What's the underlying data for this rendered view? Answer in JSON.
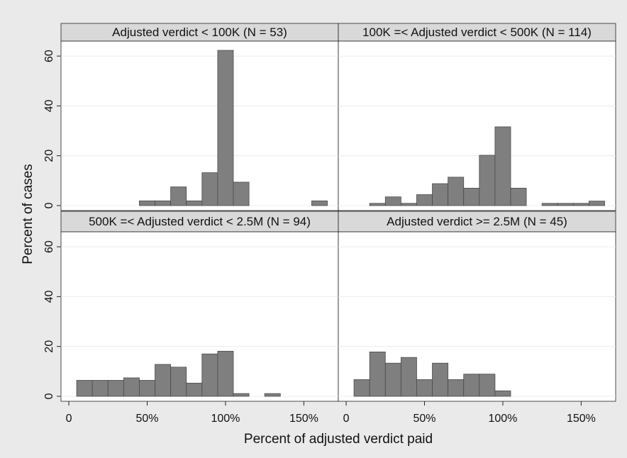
{
  "xlabel": "Percent of adjusted verdict paid",
  "ylabel": "Percent of cases",
  "chart_data": [
    {
      "type": "histogram",
      "title": "Adjusted verdict < 100K (N = 53)",
      "color": "#7f7f7f",
      "bins": [
        5,
        15,
        25,
        35,
        45,
        55,
        65,
        75,
        85,
        95,
        105,
        115,
        125,
        135,
        145,
        155,
        165
      ],
      "values": [
        0,
        0,
        0,
        0,
        1.9,
        1.9,
        7.5,
        1.9,
        13.2,
        62.3,
        9.4,
        0,
        0,
        0,
        0,
        1.9
      ],
      "xlim": [
        -5,
        172
      ],
      "ylim": [
        -2,
        66
      ],
      "yticks": [
        0,
        20,
        40,
        60
      ],
      "grid": true
    },
    {
      "type": "histogram",
      "title": "100K =< Adjusted verdict < 500K (N = 114)",
      "color": "#7f7f7f",
      "bins": [
        5,
        15,
        25,
        35,
        45,
        55,
        65,
        75,
        85,
        95,
        105,
        115,
        125,
        135,
        145,
        155,
        165
      ],
      "values": [
        0,
        0.9,
        3.5,
        0.9,
        4.4,
        8.8,
        11.4,
        7.0,
        20.2,
        31.6,
        7.0,
        0,
        0.9,
        0.9,
        0.9,
        1.8
      ],
      "xlim": [
        -5,
        172
      ],
      "ylim": [
        -2,
        66
      ],
      "yticks": [
        0,
        20,
        40,
        60
      ],
      "grid": true
    },
    {
      "type": "histogram",
      "title": "500K =< Adjusted verdict < 2.5M (N = 94)",
      "color": "#7f7f7f",
      "bins": [
        5,
        15,
        25,
        35,
        45,
        55,
        65,
        75,
        85,
        95,
        105,
        115,
        125,
        135,
        145,
        155,
        165
      ],
      "values": [
        6.4,
        6.4,
        6.4,
        7.4,
        6.4,
        12.8,
        11.7,
        5.3,
        17.0,
        18.1,
        1.1,
        0,
        1.1,
        0,
        0,
        0
      ],
      "xlim": [
        -5,
        172
      ],
      "ylim": [
        -2,
        66
      ],
      "yticks": [
        0,
        20,
        40,
        60
      ],
      "xticks": [
        0,
        {
          "value": 50,
          "label": "50%"
        },
        {
          "value": 100,
          "label": "100%"
        },
        {
          "value": 150,
          "label": "150%"
        }
      ],
      "grid": true
    },
    {
      "type": "histogram",
      "title": "Adjusted verdict >= 2.5M (N = 45)",
      "color": "#7f7f7f",
      "bins": [
        5,
        15,
        25,
        35,
        45,
        55,
        65,
        75,
        85,
        95,
        105,
        115,
        125,
        135,
        145,
        155,
        165
      ],
      "values": [
        6.7,
        17.8,
        13.3,
        15.6,
        6.7,
        13.3,
        6.7,
        8.9,
        8.9,
        2.2,
        0,
        0,
        0,
        0,
        0,
        0
      ],
      "xlim": [
        -5,
        172
      ],
      "ylim": [
        -2,
        66
      ],
      "yticks": [
        0,
        20,
        40,
        60
      ],
      "xticks": [
        0,
        {
          "value": 50,
          "label": "50%"
        },
        {
          "value": 100,
          "label": "100%"
        },
        {
          "value": 150,
          "label": "150%"
        }
      ],
      "grid": true
    }
  ]
}
